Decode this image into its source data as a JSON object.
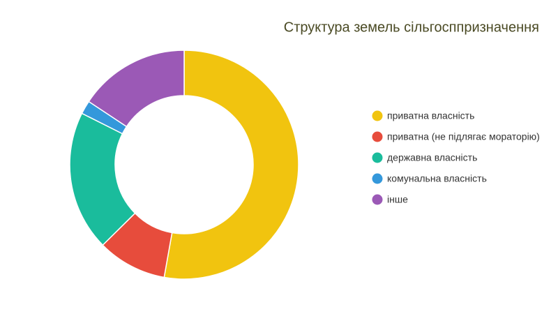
{
  "chart_data": {
    "type": "donut",
    "title": "Структура земель сільгосппризначення",
    "categories": [
      "приватна власність",
      "приватна (не підлягає мораторію)",
      "державна власність",
      "комунальна власність",
      "інше"
    ],
    "values": [
      52.8,
      9.8,
      19.8,
      1.9,
      15.7
    ],
    "colors": [
      "#f1c40f",
      "#e74c3c",
      "#1abc9c",
      "#3498db",
      "#9b59b6"
    ]
  }
}
